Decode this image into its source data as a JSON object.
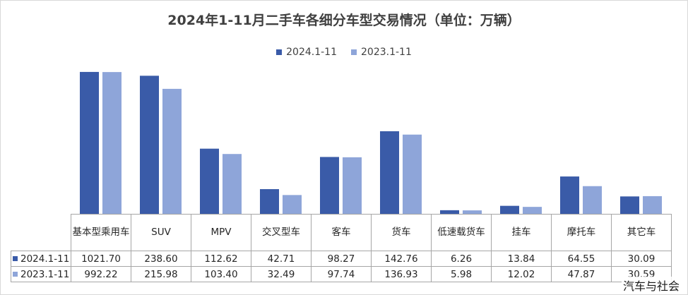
{
  "chart_data": {
    "type": "bar",
    "title": "2024年1-11月二手车各细分车型交易情况（单位：万辆）",
    "categories": [
      "基本型乘用车",
      "SUV",
      "MPV",
      "交叉型车",
      "客车",
      "货车",
      "低速载货车",
      "挂车",
      "摩托车",
      "其它车"
    ],
    "series": [
      {
        "name": "2024.1-11",
        "color": "#3a5ba8",
        "values": [
          1021.7,
          238.6,
          112.62,
          42.71,
          98.27,
          142.76,
          6.26,
          13.84,
          64.55,
          30.09
        ],
        "display": [
          "1021.70",
          "238.60",
          "112.62",
          "42.71",
          "98.27",
          "142.76",
          "6.26",
          "13.84",
          "64.55",
          "30.09"
        ]
      },
      {
        "name": "2023.1-11",
        "color": "#8ea5d9",
        "values": [
          992.22,
          215.98,
          103.4,
          32.49,
          97.74,
          136.93,
          5.98,
          12.02,
          47.87,
          30.59
        ],
        "display": [
          "992.22",
          "215.98",
          "103.40",
          "32.49",
          "97.74",
          "136.93",
          "5.98",
          "12.02",
          "47.87",
          "30.59"
        ]
      }
    ],
    "legend": "top-center",
    "data_table": true,
    "grid": false
  },
  "watermark": "汽车与社会"
}
